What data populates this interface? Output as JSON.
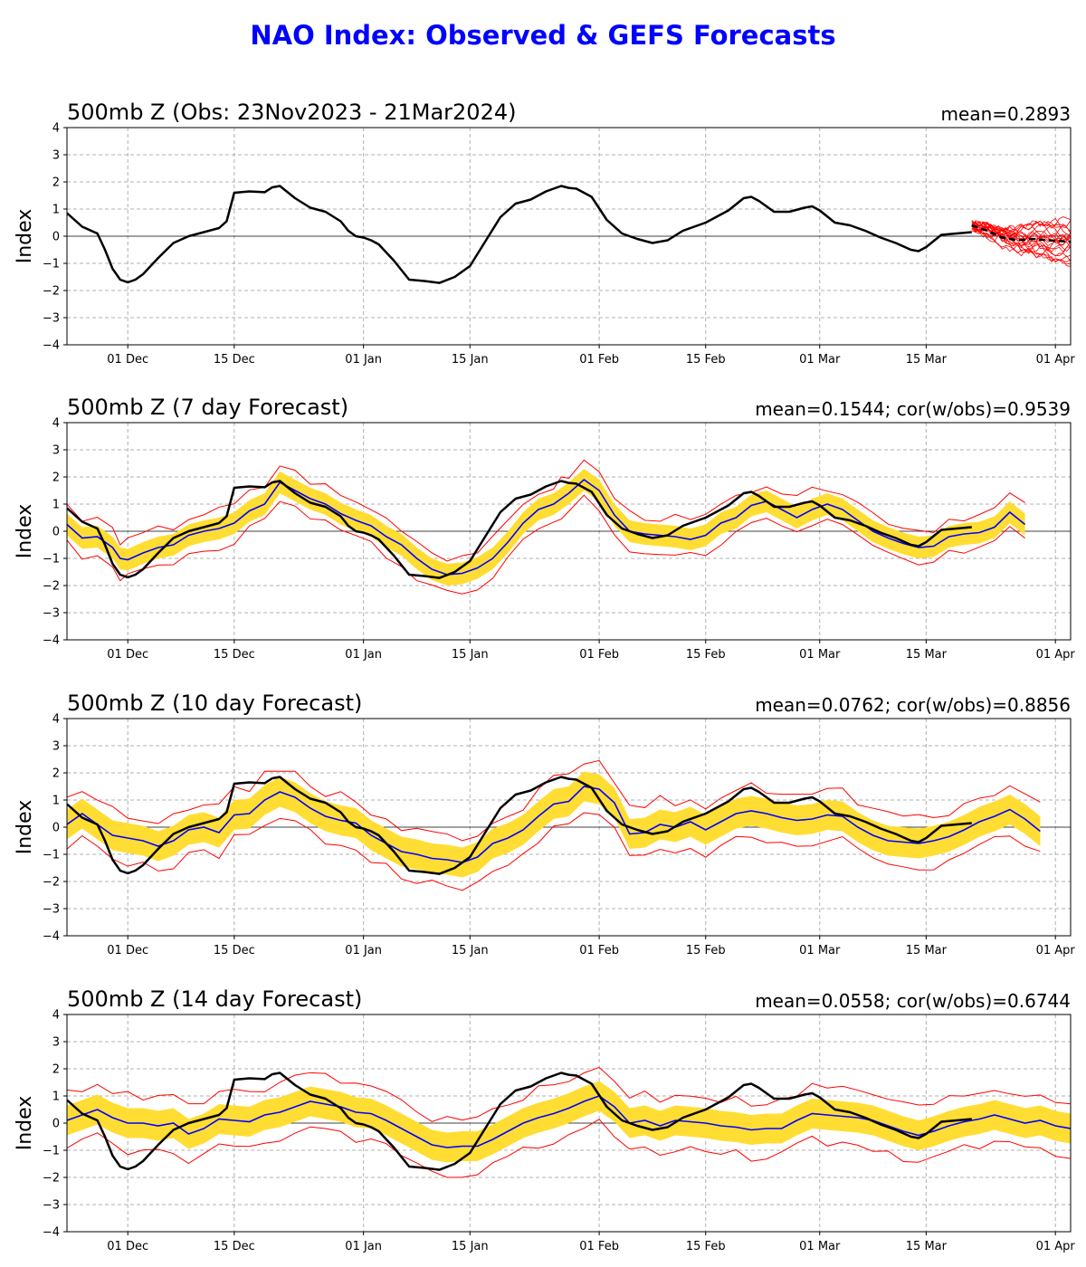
{
  "title": "NAO Index: Observed & GEFS Forecasts",
  "colors": {
    "title": "#0000ff",
    "observed": "#000000",
    "ensemble_mean": "#0000ff",
    "spread_band": "#ffdd33",
    "extremes": "#ff0000",
    "members": "#ff0000"
  },
  "chart_data": [
    {
      "type": "line",
      "title": "500mb Z (Obs: 23Nov2023 - 21Mar2024)",
      "stat": "mean=0.2893",
      "ylabel": "Index",
      "ylim": [
        -4,
        4
      ],
      "yticks": [
        4,
        3,
        2,
        1,
        0,
        -1,
        -2,
        -3,
        -4
      ],
      "x_range": [
        "2023-11-23",
        "2024-04-03"
      ],
      "xticks": [
        {
          "date": "2023-12-01",
          "label": "01 Dec"
        },
        {
          "date": "2023-12-15",
          "label": "15 Dec"
        },
        {
          "date": "2024-01-01",
          "label": "01 Jan"
        },
        {
          "date": "2024-01-15",
          "label": "15 Jan"
        },
        {
          "date": "2024-02-01",
          "label": "01 Feb"
        },
        {
          "date": "2024-02-15",
          "label": "15 Feb"
        },
        {
          "date": "2024-03-01",
          "label": "01 Mar"
        },
        {
          "date": "2024-03-15",
          "label": "15 Mar"
        },
        {
          "date": "2024-04-01",
          "label": "01 Apr"
        }
      ],
      "grid": true,
      "observed": {
        "dates": [
          "2023-11-23",
          "2023-11-25",
          "2023-11-27",
          "2023-11-28",
          "2023-11-29",
          "2023-11-30",
          "2023-12-01",
          "2023-12-02",
          "2023-12-03",
          "2023-12-05",
          "2023-12-07",
          "2023-12-09",
          "2023-12-11",
          "2023-12-13",
          "2023-12-14",
          "2023-12-15",
          "2023-12-17",
          "2023-12-19",
          "2023-12-20",
          "2023-12-21",
          "2023-12-23",
          "2023-12-25",
          "2023-12-27",
          "2023-12-29",
          "2023-12-30",
          "2023-12-31",
          "2024-01-01",
          "2024-01-02",
          "2024-01-03",
          "2024-01-05",
          "2024-01-07",
          "2024-01-09",
          "2024-01-11",
          "2024-01-13",
          "2024-01-14",
          "2024-01-15",
          "2024-01-17",
          "2024-01-19",
          "2024-01-21",
          "2024-01-23",
          "2024-01-25",
          "2024-01-27",
          "2024-01-28",
          "2024-01-29",
          "2024-01-31",
          "2024-02-02",
          "2024-02-04",
          "2024-02-06",
          "2024-02-08",
          "2024-02-10",
          "2024-02-12",
          "2024-02-15",
          "2024-02-18",
          "2024-02-20",
          "2024-02-21",
          "2024-02-22",
          "2024-02-24",
          "2024-02-26",
          "2024-02-28",
          "2024-02-29",
          "2024-03-01",
          "2024-03-03",
          "2024-03-05",
          "2024-03-07",
          "2024-03-09",
          "2024-03-11",
          "2024-03-13",
          "2024-03-14",
          "2024-03-15",
          "2024-03-17",
          "2024-03-19",
          "2024-03-21"
        ],
        "values": [
          0.85,
          0.35,
          0.1,
          -0.5,
          -1.2,
          -1.6,
          -1.7,
          -1.6,
          -1.4,
          -0.8,
          -0.25,
          0.0,
          0.15,
          0.3,
          0.55,
          1.6,
          1.65,
          1.62,
          1.8,
          1.85,
          1.4,
          1.05,
          0.9,
          0.55,
          0.2,
          0.0,
          -0.05,
          -0.15,
          -0.3,
          -0.9,
          -1.6,
          -1.65,
          -1.72,
          -1.5,
          -1.3,
          -1.1,
          -0.2,
          0.7,
          1.2,
          1.35,
          1.65,
          1.85,
          1.78,
          1.75,
          1.45,
          0.6,
          0.1,
          -0.1,
          -0.25,
          -0.15,
          0.2,
          0.5,
          0.95,
          1.4,
          1.45,
          1.3,
          0.9,
          0.9,
          1.05,
          1.1,
          0.95,
          0.5,
          0.4,
          0.2,
          -0.05,
          -0.25,
          -0.5,
          -0.55,
          -0.4,
          0.05,
          0.1,
          0.15
        ]
      },
      "forecast_mean": {
        "dates": [
          "2024-03-21",
          "2024-03-23",
          "2024-03-25",
          "2024-03-27",
          "2024-03-29",
          "2024-03-31",
          "2024-04-03"
        ],
        "values": [
          0.4,
          0.2,
          -0.05,
          -0.15,
          -0.1,
          -0.15,
          -0.2
        ]
      },
      "members_count": 21
    },
    {
      "type": "line",
      "title": "500mb Z (7 day Forecast)",
      "stat": "mean=0.1544; cor(w/obs)=0.9539",
      "ylabel": "Index",
      "ylim": [
        -4,
        4
      ],
      "grid": true,
      "ensemble_mean": {
        "dates": [
          "2023-11-23",
          "2023-11-25",
          "2023-11-27",
          "2023-11-29",
          "2023-11-30",
          "2023-12-01",
          "2023-12-03",
          "2023-12-05",
          "2023-12-07",
          "2023-12-09",
          "2023-12-11",
          "2023-12-13",
          "2023-12-15",
          "2023-12-17",
          "2023-12-19",
          "2023-12-21",
          "2023-12-23",
          "2023-12-25",
          "2023-12-27",
          "2023-12-29",
          "2023-12-31",
          "2024-01-02",
          "2024-01-04",
          "2024-01-06",
          "2024-01-08",
          "2024-01-10",
          "2024-01-12",
          "2024-01-14",
          "2024-01-16",
          "2024-01-18",
          "2024-01-20",
          "2024-01-22",
          "2024-01-24",
          "2024-01-26",
          "2024-01-27",
          "2024-01-28",
          "2024-01-30",
          "2024-02-01",
          "2024-02-03",
          "2024-02-05",
          "2024-02-07",
          "2024-02-09",
          "2024-02-11",
          "2024-02-13",
          "2024-02-15",
          "2024-02-17",
          "2024-02-19",
          "2024-02-21",
          "2024-02-23",
          "2024-02-25",
          "2024-02-27",
          "2024-02-29",
          "2024-03-02",
          "2024-03-04",
          "2024-03-06",
          "2024-03-08",
          "2024-03-10",
          "2024-03-12",
          "2024-03-14",
          "2024-03-16",
          "2024-03-18",
          "2024-03-20",
          "2024-03-22",
          "2024-03-24",
          "2024-03-26",
          "2024-03-28"
        ],
        "values": [
          0.25,
          -0.25,
          -0.2,
          -0.6,
          -1.0,
          -1.05,
          -0.8,
          -0.6,
          -0.5,
          -0.15,
          0.0,
          0.1,
          0.3,
          0.75,
          1.0,
          1.8,
          1.5,
          1.2,
          1.0,
          0.65,
          0.4,
          0.2,
          -0.2,
          -0.5,
          -1.0,
          -1.4,
          -1.6,
          -1.55,
          -1.35,
          -1.0,
          -0.4,
          0.3,
          0.8,
          1.0,
          1.2,
          1.4,
          1.9,
          1.5,
          0.6,
          0.0,
          -0.1,
          -0.15,
          -0.2,
          -0.3,
          -0.15,
          0.3,
          0.5,
          0.95,
          1.1,
          0.8,
          0.5,
          0.8,
          1.0,
          0.8,
          0.4,
          0.0,
          -0.25,
          -0.45,
          -0.6,
          -0.55,
          -0.2,
          -0.1,
          -0.05,
          0.15,
          0.7,
          0.25
        ]
      },
      "band_width": 0.4,
      "extremes_width": 0.65
    },
    {
      "type": "line",
      "title": "500mb Z (10 day Forecast)",
      "stat": "mean=0.0762; cor(w/obs)=0.8856",
      "ylabel": "Index",
      "ylim": [
        -4,
        4
      ],
      "grid": true,
      "ensemble_mean": {
        "dates": [
          "2023-11-23",
          "2023-11-25",
          "2023-11-27",
          "2023-11-29",
          "2023-12-01",
          "2023-12-03",
          "2023-12-05",
          "2023-12-07",
          "2023-12-09",
          "2023-12-11",
          "2023-12-13",
          "2023-12-15",
          "2023-12-17",
          "2023-12-19",
          "2023-12-21",
          "2023-12-23",
          "2023-12-25",
          "2023-12-27",
          "2023-12-29",
          "2023-12-31",
          "2024-01-02",
          "2024-01-04",
          "2024-01-06",
          "2024-01-08",
          "2024-01-10",
          "2024-01-12",
          "2024-01-14",
          "2024-01-16",
          "2024-01-18",
          "2024-01-20",
          "2024-01-22",
          "2024-01-24",
          "2024-01-26",
          "2024-01-28",
          "2024-01-30",
          "2024-02-01",
          "2024-02-03",
          "2024-02-05",
          "2024-02-07",
          "2024-02-09",
          "2024-02-11",
          "2024-02-13",
          "2024-02-15",
          "2024-02-17",
          "2024-02-19",
          "2024-02-21",
          "2024-02-23",
          "2024-02-25",
          "2024-02-27",
          "2024-02-29",
          "2024-03-02",
          "2024-03-04",
          "2024-03-06",
          "2024-03-08",
          "2024-03-10",
          "2024-03-12",
          "2024-03-14",
          "2024-03-16",
          "2024-03-18",
          "2024-03-20",
          "2024-03-22",
          "2024-03-24",
          "2024-03-26",
          "2024-03-28",
          "2024-03-30"
        ],
        "values": [
          0.1,
          0.5,
          0.1,
          -0.3,
          -0.4,
          -0.5,
          -0.7,
          -0.5,
          -0.1,
          0.0,
          -0.2,
          0.45,
          0.5,
          1.0,
          1.3,
          1.1,
          0.7,
          0.4,
          0.25,
          0.15,
          -0.3,
          -0.6,
          -0.9,
          -1.0,
          -1.15,
          -1.2,
          -1.3,
          -1.1,
          -0.6,
          -0.4,
          -0.1,
          0.4,
          0.85,
          0.95,
          1.5,
          1.4,
          0.9,
          -0.25,
          -0.2,
          0.1,
          0.0,
          0.2,
          -0.1,
          0.2,
          0.5,
          0.6,
          0.5,
          0.35,
          0.25,
          0.3,
          0.45,
          0.4,
          0.0,
          -0.3,
          -0.5,
          -0.55,
          -0.6,
          -0.5,
          -0.35,
          -0.1,
          0.2,
          0.4,
          0.65,
          0.3,
          -0.15
        ]
      },
      "band_width": 0.55,
      "extremes_width": 0.9
    },
    {
      "type": "line",
      "title": "500mb Z (14 day Forecast)",
      "stat": "mean=0.0558; cor(w/obs)=0.6744",
      "ylabel": "Index",
      "ylim": [
        -4,
        4
      ],
      "grid": true,
      "ensemble_mean": {
        "dates": [
          "2023-11-23",
          "2023-11-25",
          "2023-11-27",
          "2023-11-29",
          "2023-12-01",
          "2023-12-03",
          "2023-12-05",
          "2023-12-07",
          "2023-12-09",
          "2023-12-11",
          "2023-12-13",
          "2023-12-15",
          "2023-12-17",
          "2023-12-19",
          "2023-12-21",
          "2023-12-23",
          "2023-12-25",
          "2023-12-27",
          "2023-12-29",
          "2023-12-31",
          "2024-01-02",
          "2024-01-04",
          "2024-01-06",
          "2024-01-08",
          "2024-01-10",
          "2024-01-12",
          "2024-01-14",
          "2024-01-16",
          "2024-01-18",
          "2024-01-20",
          "2024-01-22",
          "2024-01-24",
          "2024-01-26",
          "2024-01-28",
          "2024-01-30",
          "2024-02-01",
          "2024-02-03",
          "2024-02-05",
          "2024-02-07",
          "2024-02-09",
          "2024-02-11",
          "2024-02-13",
          "2024-02-15",
          "2024-02-17",
          "2024-02-19",
          "2024-02-21",
          "2024-02-23",
          "2024-02-25",
          "2024-02-27",
          "2024-02-29",
          "2024-03-02",
          "2024-03-04",
          "2024-03-06",
          "2024-03-08",
          "2024-03-10",
          "2024-03-12",
          "2024-03-14",
          "2024-03-16",
          "2024-03-18",
          "2024-03-20",
          "2024-03-22",
          "2024-03-24",
          "2024-03-26",
          "2024-03-28",
          "2024-03-30",
          "2024-04-01",
          "2024-04-03"
        ],
        "values": [
          0.1,
          0.3,
          0.5,
          0.2,
          0.0,
          0.0,
          -0.1,
          0.0,
          -0.4,
          -0.2,
          0.15,
          0.1,
          0.05,
          0.3,
          0.4,
          0.6,
          0.8,
          0.7,
          0.6,
          0.4,
          0.35,
          0.1,
          -0.2,
          -0.5,
          -0.8,
          -0.9,
          -0.85,
          -0.85,
          -0.6,
          -0.3,
          0.0,
          0.2,
          0.35,
          0.55,
          0.8,
          1.0,
          0.6,
          0.0,
          0.1,
          -0.1,
          0.1,
          0.05,
          0.0,
          -0.1,
          -0.15,
          -0.25,
          -0.2,
          -0.2,
          0.1,
          0.35,
          0.3,
          0.25,
          0.2,
          0.1,
          -0.1,
          -0.3,
          -0.45,
          -0.3,
          -0.1,
          0.05,
          0.15,
          0.3,
          0.15,
          0.0,
          0.1,
          -0.1,
          -0.2
        ]
      },
      "band_width": 0.55,
      "extremes_width": 1.0
    }
  ]
}
